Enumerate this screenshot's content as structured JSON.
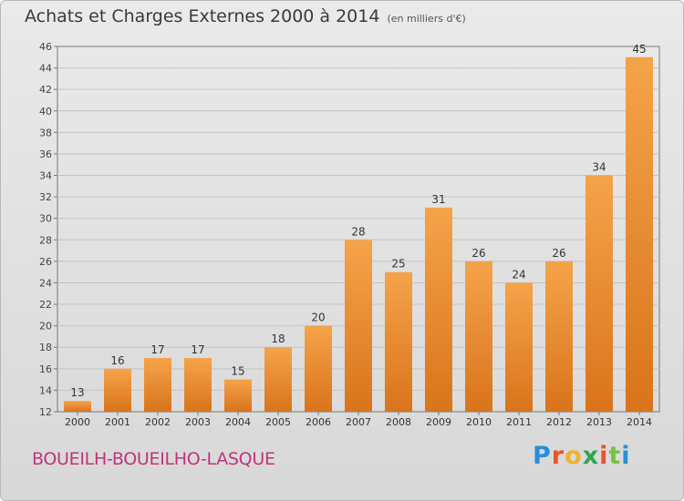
{
  "header": {
    "title": "Achats et Charges Externes 2000 à 2014",
    "unit": "(en milliers d'€)"
  },
  "footer": {
    "place": "BOUEILH-BOUEILHO-LASQUE",
    "logo": "Proxiti"
  },
  "colors": {
    "bar_light": "#f5a34a",
    "bar_dark": "#d9741b",
    "place_text": "#c0357a"
  },
  "chart_data": {
    "type": "bar",
    "title": "Achats et Charges Externes 2000 à 2014",
    "subtitle": "(en milliers d'€)",
    "categories": [
      "2000",
      "2001",
      "2002",
      "2003",
      "2004",
      "2005",
      "2006",
      "2007",
      "2008",
      "2009",
      "2010",
      "2011",
      "2012",
      "2013",
      "2014"
    ],
    "values": [
      13,
      16,
      17,
      17,
      15,
      18,
      20,
      28,
      25,
      31,
      26,
      24,
      26,
      34,
      45
    ],
    "data_labels": [
      "13",
      "16",
      "17",
      "17",
      "15",
      "18",
      "20",
      "28",
      "25",
      "31",
      "26",
      "24",
      "26",
      "34",
      "45"
    ],
    "ylim": [
      12,
      46
    ],
    "yticks": [
      "12",
      "14",
      "16",
      "18",
      "20",
      "22",
      "24",
      "26",
      "28",
      "30",
      "32",
      "34",
      "36",
      "38",
      "40",
      "42",
      "44",
      "46"
    ],
    "grid": true,
    "legend": "none"
  }
}
